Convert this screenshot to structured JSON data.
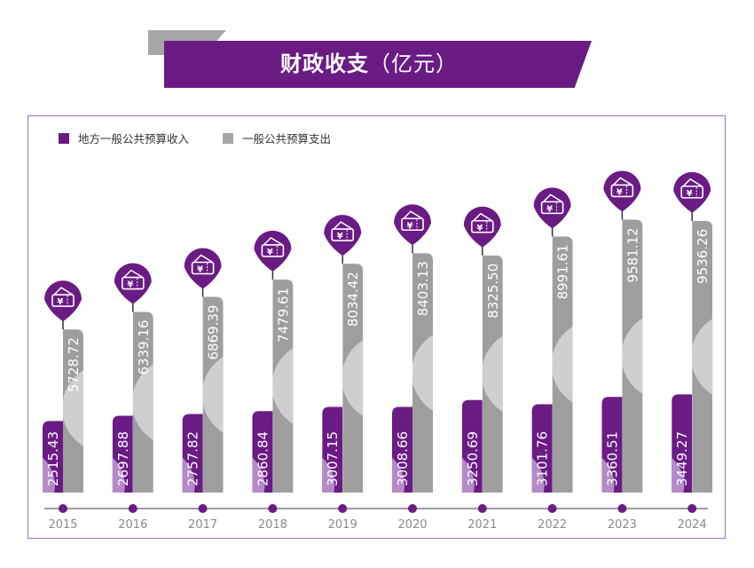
{
  "chart_data": {
    "type": "bar",
    "title": "财政收支（亿元）",
    "xlabel": "",
    "ylabel": "",
    "categories": [
      "2015",
      "2016",
      "2017",
      "2018",
      "2019",
      "2020",
      "2021",
      "2022",
      "2023",
      "2024"
    ],
    "series": [
      {
        "name": "地方一般公共预算收入",
        "color": "#6a1b84",
        "values": [
          2515.43,
          2697.88,
          2757.82,
          2860.84,
          3007.15,
          3008.66,
          3250.69,
          3101.76,
          3360.51,
          3449.27
        ]
      },
      {
        "name": "一般公共预算支出",
        "color": "#9e9e9e",
        "values": [
          5728.72,
          6339.16,
          6869.39,
          7479.61,
          8034.42,
          8403.13,
          8325.5,
          8991.61,
          9581.12,
          9536.26
        ]
      }
    ],
    "value_labels": {
      "income": [
        "2515.43",
        "2697.88",
        "2757.82",
        "2860.84",
        "3007.15",
        "3008.66",
        "3250.69",
        "3101.76",
        "3360.51",
        "3449.27"
      ],
      "expenditure": [
        "5728.72",
        "6339.16",
        "6869.39",
        "7479.61",
        "8034.42",
        "8403.13",
        "8325.50",
        "8991.61",
        "9581.12",
        "9536.26"
      ]
    },
    "ylim": [
      0,
      10000
    ],
    "grid": false,
    "legend_position": "top-left",
    "icon": "yuan-ticket-pin-icon"
  },
  "header": {
    "title_main": "财政收支",
    "title_unit": "（亿元）"
  },
  "legend": {
    "income_label": "地方一般公共预算收入",
    "expenditure_label": "一般公共预算支出"
  }
}
